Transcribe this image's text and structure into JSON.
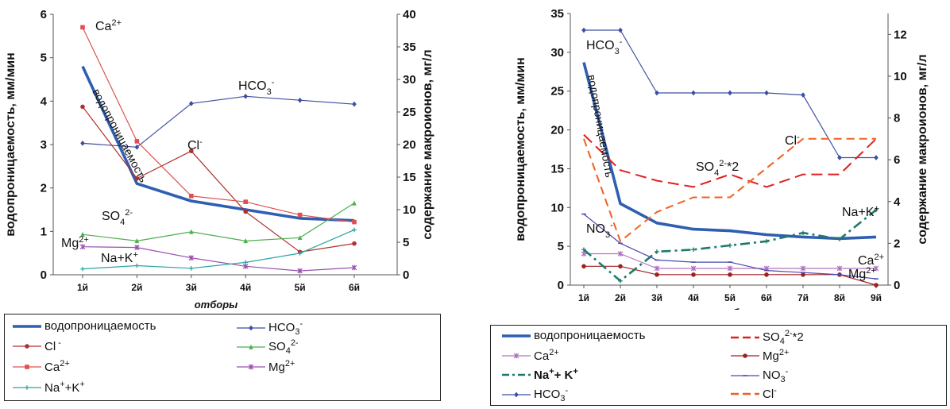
{
  "chart_data": [
    {
      "type": "line",
      "xlabel": "отборы",
      "ylabel_left": "водопроницаемость, мм/мин",
      "ylabel_right": "содержание макроионов, мг/л",
      "categories": [
        "1й",
        "2й",
        "3й",
        "4й",
        "5й",
        "6й"
      ],
      "ylim_left": [
        0,
        6
      ],
      "ylim_right": [
        0,
        40
      ],
      "yticks_left": [
        "0",
        "1",
        "2",
        "3",
        "4",
        "5",
        "6"
      ],
      "yticks_right": [
        "0",
        "5",
        "10",
        "15",
        "20",
        "25",
        "30",
        "35",
        "40"
      ],
      "grid": false,
      "series": [
        {
          "name": "водопроницаемость",
          "axis": "left",
          "color": "#2e5fb0",
          "style": "thick",
          "values": [
            4.8,
            2.1,
            1.7,
            1.5,
            1.3,
            1.25
          ]
        },
        {
          "name": "HCO3-",
          "axis": "right",
          "color": "#3f4fa0",
          "marker": "diamond",
          "values": [
            20.2,
            19.6,
            26.3,
            27.4,
            26.8,
            26.2
          ]
        },
        {
          "name": "Cl-",
          "axis": "right",
          "color": "#b03030",
          "marker": "circle",
          "values": [
            25.8,
            14.8,
            19.0,
            9.7,
            3.5,
            4.8
          ]
        },
        {
          "name": "SO4 2-",
          "axis": "right",
          "color": "#4caf50",
          "marker": "triangle",
          "values": [
            6.2,
            5.2,
            6.6,
            5.2,
            5.7,
            11.0
          ]
        },
        {
          "name": "Ca2+",
          "axis": "right",
          "color": "#e05050",
          "marker": "square",
          "values": [
            38.0,
            20.5,
            12.1,
            11.2,
            9.2,
            8.1
          ]
        },
        {
          "name": "Mg2+",
          "axis": "right",
          "color": "#9a4fb0",
          "marker": "star",
          "values": [
            4.3,
            4.2,
            2.6,
            1.3,
            0.6,
            1.1
          ]
        },
        {
          "name": "Na+K+",
          "axis": "right",
          "color": "#2ba6a0",
          "marker": "plus",
          "values": [
            0.9,
            1.4,
            1.0,
            1.9,
            3.3,
            6.9
          ]
        }
      ],
      "annotations": [
        {
          "text": "Ca",
          "sup": "2+"
        },
        {
          "text": "HCO",
          "sub": "3",
          "sup": "-"
        },
        {
          "text": "Cl",
          "sup": "-"
        },
        {
          "text": "SO",
          "sub": "4",
          "sup": "2-"
        },
        {
          "text": "Mg",
          "sup": "2+"
        },
        {
          "text": "Na+K",
          "sup": "+"
        },
        {
          "text": "водопроницаемость"
        }
      ],
      "legend": [
        {
          "label": "водопроницаемость",
          "color": "#2e5fb0",
          "style": "thick"
        },
        {
          "label": "HCO",
          "sub": "3",
          "sup": "-",
          "color": "#3f4fa0",
          "marker": "diamond"
        },
        {
          "label": "Cl",
          "sup": " -",
          "color": "#b03030",
          "marker": "circle"
        },
        {
          "label": "SO",
          "sub": "4",
          "sup": "2-",
          "color": "#4caf50",
          "marker": "triangle"
        },
        {
          "label": "Ca",
          "sup": "2+",
          "color": "#e05050",
          "marker": "square"
        },
        {
          "label": "Mg",
          "sup": "2+",
          "color": "#9a4fb0",
          "marker": "star"
        },
        {
          "label": "Na",
          "sup": "+",
          "label2": "+K",
          "sup2": "+",
          "color": "#2ba6a0",
          "marker": "plus"
        }
      ]
    },
    {
      "type": "line",
      "xlabel": "отборы",
      "ylabel_left": "водопроницаемость, мм/мин",
      "ylabel_right": "содержание макроионов, мг/л",
      "categories": [
        "1й",
        "2й",
        "3й",
        "4й",
        "5й",
        "6й",
        "7й",
        "8й",
        "9й"
      ],
      "ylim_left": [
        0,
        35
      ],
      "ylim_right": [
        0,
        13
      ],
      "yticks_left": [
        "0",
        "5",
        "10",
        "15",
        "20",
        "25",
        "30",
        "35"
      ],
      "yticks_right": [
        "0",
        "2",
        "4",
        "6",
        "8",
        "10",
        "12"
      ],
      "grid": false,
      "series": [
        {
          "name": "водопроницаемость",
          "axis": "left",
          "color": "#2e5fb0",
          "style": "thick",
          "values": [
            28.7,
            10.5,
            8.0,
            7.2,
            7.0,
            6.5,
            6.2,
            6.0,
            6.2
          ]
        },
        {
          "name": "SO4 2-*2",
          "axis": "right",
          "color": "#e02020",
          "style": "longdash",
          "values": [
            7.2,
            5.5,
            5.0,
            4.7,
            5.3,
            4.7,
            5.3,
            5.3,
            7.0
          ]
        },
        {
          "name": "Ca2+",
          "axis": "right",
          "color": "#b070c0",
          "marker": "star",
          "values": [
            1.5,
            1.5,
            0.8,
            0.8,
            0.8,
            0.8,
            0.8,
            0.8,
            0.8
          ]
        },
        {
          "name": "Mg2+",
          "axis": "right",
          "color": "#a02020",
          "marker": "circle",
          "values": [
            0.9,
            0.9,
            0.5,
            0.5,
            0.5,
            0.5,
            0.5,
            0.5,
            0.0
          ]
        },
        {
          "name": "Na+K+",
          "axis": "right",
          "color": "#1d7a6a",
          "style": "dashdot",
          "values": [
            1.7,
            0.2,
            1.6,
            1.7,
            1.9,
            2.1,
            2.5,
            2.2,
            3.6
          ]
        },
        {
          "name": "NO3-",
          "axis": "right",
          "color": "#4a4ab0",
          "marker": "dash",
          "values": [
            3.4,
            2.0,
            1.2,
            1.1,
            1.1,
            0.7,
            0.6,
            0.5,
            0.3
          ]
        },
        {
          "name": "HCO3-",
          "axis": "right",
          "color": "#3f4fa0",
          "marker": "diamond",
          "values": [
            12.2,
            12.2,
            9.2,
            9.2,
            9.2,
            9.2,
            9.1,
            6.1,
            6.1
          ]
        },
        {
          "name": "Cl-",
          "axis": "right",
          "color": "#f06020",
          "style": "dash",
          "values": [
            7.0,
            2.1,
            3.5,
            4.2,
            4.2,
            5.6,
            7.0,
            7.0,
            7.0
          ]
        }
      ],
      "annotations": [
        {
          "text": "HCO",
          "sub": "3",
          "sup": "-"
        },
        {
          "text": "водопроницаемость"
        },
        {
          "text": "Cl",
          "sup": "-"
        },
        {
          "text": "SO",
          "sub": "4",
          "sup": "2-",
          "after": "*2"
        },
        {
          "text": "Na+K",
          "sup": "+"
        },
        {
          "text": "NO",
          "sub": "3",
          "sup": "-"
        },
        {
          "text": "Ca",
          "sup": "2+"
        },
        {
          "text": "Mg",
          "sup": "2+"
        }
      ],
      "legend": [
        {
          "label": "водопроницаемость",
          "color": "#2e5fb0",
          "style": "thick"
        },
        {
          "label": "SO",
          "sub": "4",
          "sup": "2-",
          "after": "*2",
          "color": "#e02020",
          "style": "longdash"
        },
        {
          "label": "Ca",
          "sup": "2+",
          "color": "#b070c0",
          "marker": "star"
        },
        {
          "label": "Mg",
          "sup": "2+",
          "color": "#a02020",
          "marker": "circle"
        },
        {
          "label": "Na",
          "sup": "+",
          "label2": "+ K",
          "sup2": "+",
          "color": "#1d7a6a",
          "style": "dashdot",
          "bold": true
        },
        {
          "label": "NO",
          "sub": "3",
          "sup": "-",
          "color": "#4a4ab0",
          "marker": "dash"
        },
        {
          "label": "HCO",
          "sub": "3",
          "sup": "-",
          "color": "#3f4fa0",
          "marker": "diamond"
        },
        {
          "label": "Cl",
          "sup": "-",
          "color": "#f06020",
          "style": "dash"
        }
      ]
    }
  ]
}
